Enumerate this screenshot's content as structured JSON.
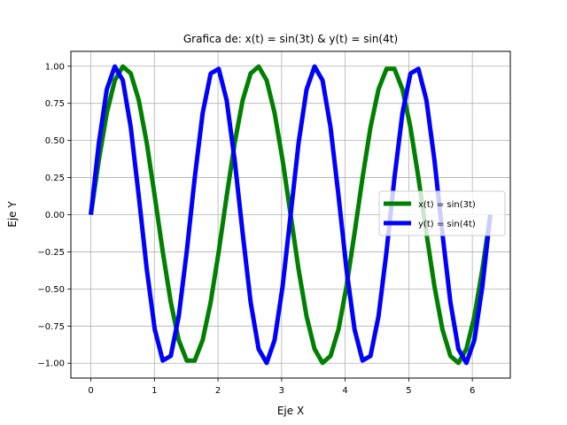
{
  "chart_data": {
    "type": "line",
    "title": "Grafica de: x(t) = sin(3t) & y(t) = sin(4t)",
    "xlabel": "Eje X",
    "ylabel": "Eje Y",
    "xlim": [
      -0.314,
      6.597
    ],
    "ylim": [
      -1.1,
      1.1
    ],
    "grid": true,
    "legend_position": "center-right",
    "x_ticks": [
      0,
      1,
      2,
      3,
      4,
      5,
      6
    ],
    "x_tick_labels": [
      "0",
      "1",
      "2",
      "3",
      "4",
      "5",
      "6"
    ],
    "y_ticks": [
      -1.0,
      -0.75,
      -0.5,
      -0.25,
      0.0,
      0.25,
      0.5,
      0.75,
      1.0
    ],
    "y_tick_labels": [
      "−1.00",
      "−0.75",
      "−0.50",
      "−0.25",
      "0.00",
      "0.25",
      "0.50",
      "0.75",
      "1.00"
    ],
    "series": [
      {
        "name": "x(t) = sin(3t)",
        "color": "#008000",
        "x": [
          0.0,
          0.126,
          0.251,
          0.377,
          0.503,
          0.628,
          0.754,
          0.88,
          1.005,
          1.131,
          1.257,
          1.382,
          1.508,
          1.634,
          1.759,
          1.885,
          2.011,
          2.136,
          2.262,
          2.388,
          2.513,
          2.639,
          2.765,
          2.89,
          3.016,
          3.142,
          3.267,
          3.393,
          3.519,
          3.644,
          3.77,
          3.896,
          4.021,
          4.147,
          4.273,
          4.398,
          4.524,
          4.65,
          4.775,
          4.901,
          5.027,
          5.152,
          5.278,
          5.404,
          5.529,
          5.655,
          5.781,
          5.906,
          6.032,
          6.158,
          6.283
        ],
        "y": [
          0.0,
          0.368,
          0.685,
          0.905,
          0.998,
          0.951,
          0.771,
          0.482,
          0.125,
          -0.249,
          -0.588,
          -0.844,
          -0.982,
          -0.982,
          -0.844,
          -0.588,
          -0.249,
          0.125,
          0.482,
          0.771,
          0.951,
          0.998,
          0.905,
          0.685,
          0.368,
          0.0,
          -0.368,
          -0.685,
          -0.905,
          -0.998,
          -0.951,
          -0.771,
          -0.482,
          -0.125,
          0.249,
          0.588,
          0.844,
          0.982,
          0.982,
          0.844,
          0.588,
          0.249,
          -0.125,
          -0.482,
          -0.771,
          -0.951,
          -0.998,
          -0.905,
          -0.685,
          -0.368,
          0.0
        ]
      },
      {
        "name": "y(t) = sin(4t)",
        "color": "#0000ff",
        "x": [
          0.0,
          0.126,
          0.251,
          0.377,
          0.503,
          0.628,
          0.754,
          0.88,
          1.005,
          1.131,
          1.257,
          1.382,
          1.508,
          1.634,
          1.759,
          1.885,
          2.011,
          2.136,
          2.262,
          2.388,
          2.513,
          2.639,
          2.765,
          2.89,
          3.016,
          3.142,
          3.267,
          3.393,
          3.519,
          3.644,
          3.77,
          3.896,
          4.021,
          4.147,
          4.273,
          4.398,
          4.524,
          4.65,
          4.775,
          4.901,
          5.027,
          5.152,
          5.278,
          5.404,
          5.529,
          5.655,
          5.781,
          5.906,
          6.032,
          6.158,
          6.283
        ],
        "y": [
          0.0,
          0.482,
          0.844,
          0.998,
          0.905,
          0.588,
          0.125,
          -0.368,
          -0.771,
          -0.982,
          -0.951,
          -0.685,
          -0.249,
          0.249,
          0.685,
          0.951,
          0.982,
          0.771,
          0.368,
          -0.125,
          -0.588,
          -0.905,
          -0.998,
          -0.844,
          -0.482,
          0.0,
          0.482,
          0.844,
          0.998,
          0.905,
          0.588,
          0.125,
          -0.368,
          -0.771,
          -0.982,
          -0.951,
          -0.685,
          -0.249,
          0.249,
          0.685,
          0.951,
          0.982,
          0.771,
          0.368,
          -0.125,
          -0.588,
          -0.905,
          -0.998,
          -0.844,
          -0.482,
          0.0
        ]
      }
    ]
  }
}
